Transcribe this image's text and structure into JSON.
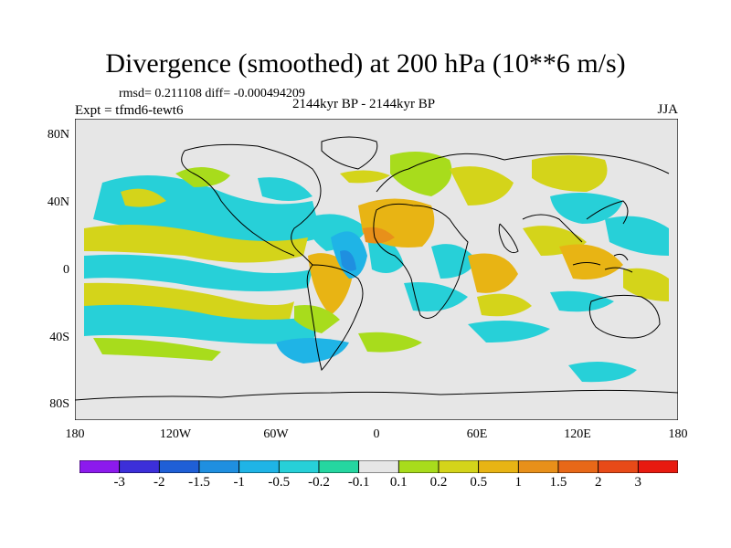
{
  "title": "Divergence (smoothed) at 200 hPa (10**6 m/s)",
  "stats": "rmsd= 0.211108 diff= -0.000494209",
  "experiment": "Expt = tfmd6-tewt6",
  "period": "2144kyr BP - 2144kyr BP",
  "season": "JJA",
  "axes": {
    "lat_labels": [
      "80N",
      "40N",
      "0",
      "40S",
      "80S"
    ],
    "lon_labels": [
      "180",
      "120W",
      "60W",
      "0",
      "60E",
      "120E",
      "180"
    ]
  },
  "colorbar": {
    "labels": [
      "-3",
      "-2",
      "-1.5",
      "-1",
      "-0.5",
      "-0.2",
      "-0.1",
      "0.1",
      "0.2",
      "0.5",
      "1",
      "1.5",
      "2",
      "3"
    ],
    "colors": [
      "#8c1aed",
      "#3c2fd9",
      "#1f5fd6",
      "#1f8fe0",
      "#1fb4e6",
      "#27d0d8",
      "#25d6a0",
      "#e6e6e6",
      "#a8dc1c",
      "#d4d41a",
      "#e8b414",
      "#e8901a",
      "#e86818",
      "#e84a18",
      "#e81a10"
    ]
  },
  "colors": {
    "background": "#e6e6e6",
    "coast": "#000000"
  }
}
